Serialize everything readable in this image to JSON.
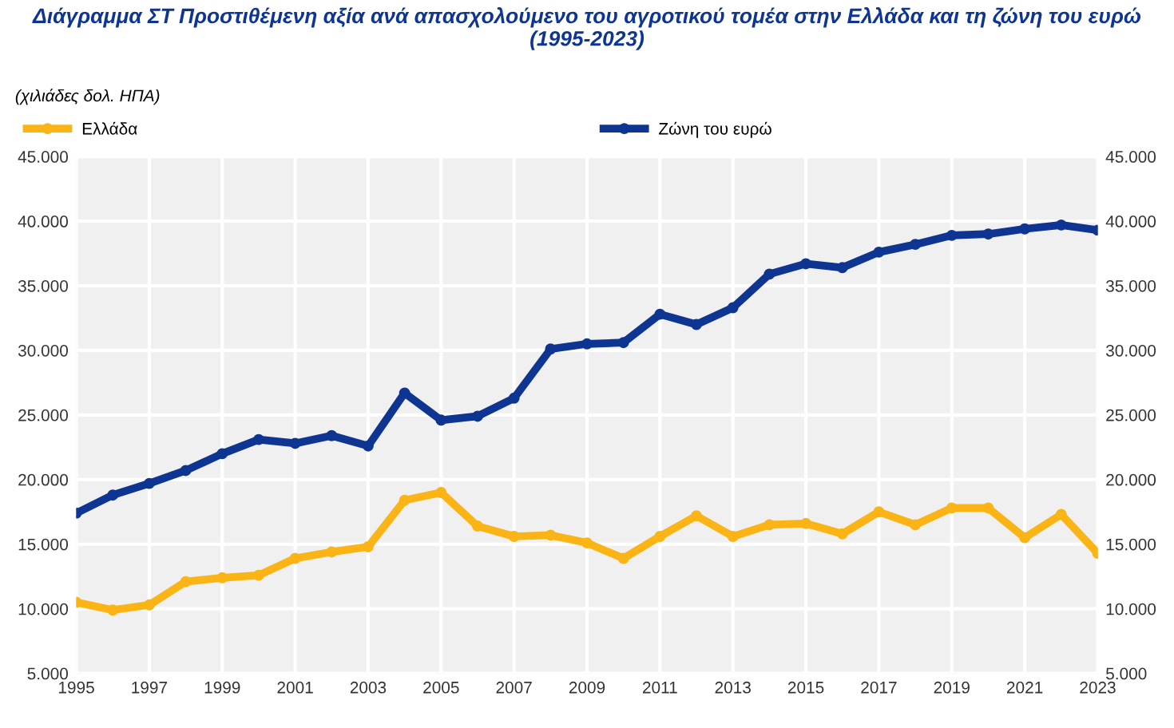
{
  "chart_data": {
    "type": "line",
    "title": "Διάγραμμα ΣΤ Προστιθέμενη αξία ανά απασχολούμενο του αγροτικού τομέα στην Ελλάδα και τη ζώνη του ευρώ\n(1995-2023)",
    "ylabel": "(χιλιάδες δολ. ΗΠΑ)",
    "x": [
      1995,
      1996,
      1997,
      1998,
      1999,
      2000,
      2001,
      2002,
      2003,
      2004,
      2005,
      2006,
      2007,
      2008,
      2009,
      2010,
      2011,
      2012,
      2013,
      2014,
      2015,
      2016,
      2017,
      2018,
      2019,
      2020,
      2021,
      2022,
      2023
    ],
    "series": [
      {
        "name": "Ελλάδα",
        "color": "#fbb415",
        "values": [
          10500,
          9900,
          10300,
          12100,
          12400,
          12600,
          13900,
          14400,
          14800,
          18400,
          19000,
          16400,
          15600,
          15700,
          15100,
          13900,
          15600,
          17200,
          15600,
          16500,
          16600,
          15800,
          17500,
          16500,
          17800,
          17800,
          15500,
          17300,
          14300
        ]
      },
      {
        "name": "Ζώνη του ευρώ",
        "color": "#0d3591",
        "values": [
          17400,
          18800,
          19700,
          20700,
          22000,
          23100,
          22800,
          23400,
          22600,
          26700,
          24600,
          24900,
          26300,
          30100,
          30500,
          30600,
          32800,
          32000,
          33300,
          35900,
          36700,
          36400,
          37600,
          38200,
          38900,
          39000,
          39400,
          39700,
          39300
        ]
      }
    ],
    "xlim": [
      1995,
      2023
    ],
    "xticks": [
      1995,
      1997,
      1999,
      2001,
      2003,
      2005,
      2007,
      2009,
      2011,
      2013,
      2015,
      2017,
      2019,
      2021,
      2023
    ],
    "ylim": [
      5000,
      45000
    ],
    "yticks": [
      {
        "value": 5000,
        "label": "5.000"
      },
      {
        "value": 10000,
        "label": "10.000"
      },
      {
        "value": 15000,
        "label": "15.000"
      },
      {
        "value": 20000,
        "label": "20.000"
      },
      {
        "value": 25000,
        "label": "25.000"
      },
      {
        "value": 30000,
        "label": "30.000"
      },
      {
        "value": 35000,
        "label": "35.000"
      },
      {
        "value": 40000,
        "label": "40.000"
      },
      {
        "value": 45000,
        "label": "45.000"
      }
    ],
    "y2lim": [
      5000,
      45000
    ],
    "y2ticks": [
      {
        "value": 5000,
        "label": "5.000"
      },
      {
        "value": 10000,
        "label": "10.000"
      },
      {
        "value": 15000,
        "label": "15.000"
      },
      {
        "value": 20000,
        "label": "20.000"
      },
      {
        "value": 25000,
        "label": "25.000"
      },
      {
        "value": 30000,
        "label": "30.000"
      },
      {
        "value": 35000,
        "label": "35.000"
      },
      {
        "value": 40000,
        "label": "40.000"
      },
      {
        "value": 45000,
        "label": "45.000"
      }
    ],
    "grid": true,
    "legend": "top",
    "marker": "circle",
    "line_style": "solid"
  }
}
